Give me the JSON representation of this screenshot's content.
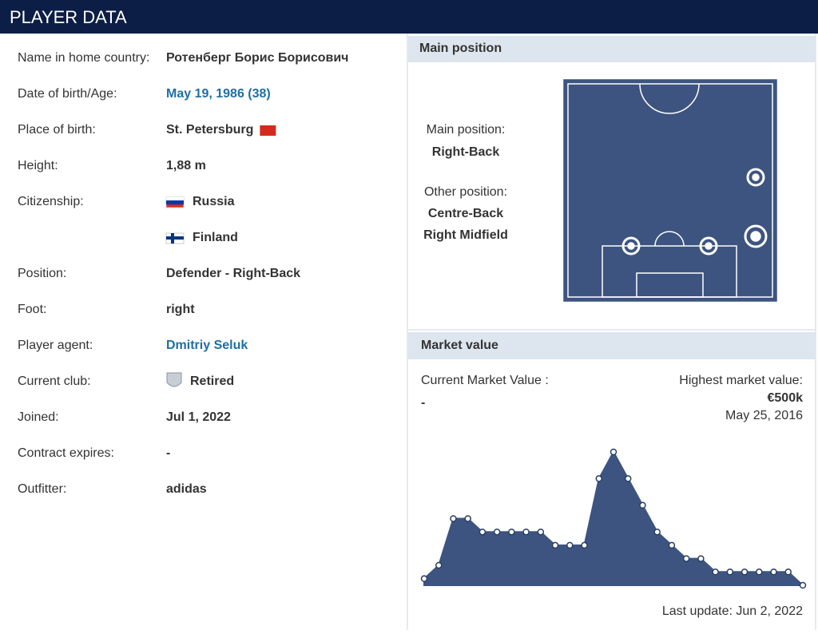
{
  "header": {
    "title": "PLAYER DATA"
  },
  "info": [
    {
      "label": "Name in home country:",
      "values": [
        "Ротенберг Борис Борисович"
      ]
    },
    {
      "label": "Date of birth/Age:",
      "values": [
        "May 19, 1986 (38)"
      ]
    },
    {
      "label": "Place of birth:",
      "values": [
        "St. Petersburg"
      ]
    },
    {
      "label": "Height:",
      "values": [
        "1,88 m"
      ]
    },
    {
      "label": "Citizenship:",
      "values": [
        "Russia",
        "Finland"
      ]
    },
    {
      "label": "Position:",
      "values": [
        "Defender - Right-Back"
      ]
    },
    {
      "label": "Foot:",
      "values": [
        "right"
      ]
    },
    {
      "label": "Player agent:",
      "values": [
        "Dmitriy Seluk"
      ]
    },
    {
      "label": "Current club:",
      "values": [
        "Retired"
      ]
    },
    {
      "label": "Joined:",
      "values": [
        "Jul 1, 2022"
      ]
    },
    {
      "label": "Contract expires:",
      "values": [
        "-"
      ]
    },
    {
      "label": "Outfitter:",
      "values": [
        "adidas"
      ]
    }
  ],
  "main_position": {
    "title": "Main position",
    "main_label": "Main position:",
    "main": "Right-Back",
    "other_label": "Other position:",
    "others": [
      "Centre-Back",
      "Right Midfield"
    ]
  },
  "market_value": {
    "title": "Market value",
    "current_label": "Current Market Value :",
    "current": "-",
    "highest_label": "Highest market value:",
    "highest": "€500k",
    "highest_date": "May 25, 2016",
    "last_update": "Last update: Jun 2, 2022",
    "chart": {
      "type": "area",
      "values": [
        25,
        75,
        250,
        250,
        200,
        200,
        200,
        200,
        200,
        150,
        150,
        150,
        400,
        500,
        400,
        300,
        200,
        150,
        100,
        100,
        50,
        50,
        50,
        50,
        50,
        50,
        0
      ]
    }
  }
}
